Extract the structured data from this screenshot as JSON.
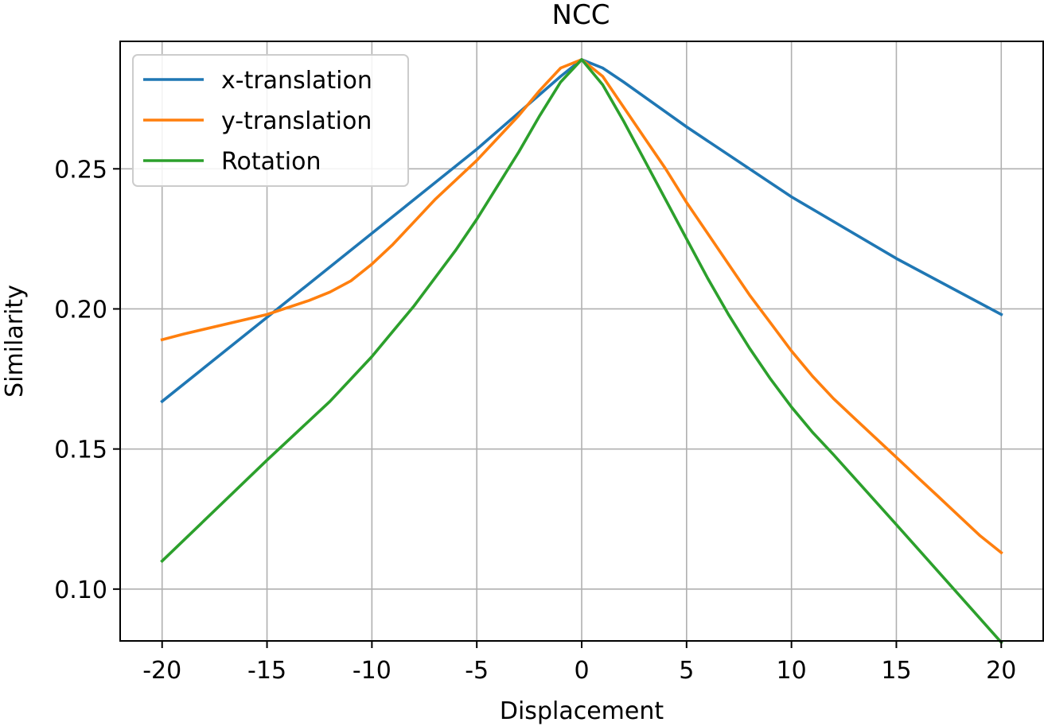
{
  "chart_data": {
    "type": "line",
    "title": "NCC",
    "xlabel": "Displacement",
    "ylabel": "Similarity",
    "xlim": [
      -22,
      22
    ],
    "ylim": [
      0.0815,
      0.2955
    ],
    "xticks": [
      -20,
      -15,
      -10,
      -5,
      0,
      5,
      10,
      15,
      20
    ],
    "xtick_labels": [
      "-20",
      "-15",
      "-10",
      "-5",
      "0",
      "5",
      "10",
      "15",
      "20"
    ],
    "yticks": [
      0.1,
      0.15,
      0.2,
      0.25
    ],
    "ytick_labels": [
      "0.10",
      "0.15",
      "0.20",
      "0.25"
    ],
    "grid": true,
    "legend_position": "top-left",
    "series": [
      {
        "name": "x-translation",
        "color": "#1f77b4",
        "x": [
          -20,
          -15,
          -10,
          -5,
          -1,
          0,
          1,
          2,
          5,
          10,
          15,
          20
        ],
        "y": [
          0.167,
          0.197,
          0.227,
          0.257,
          0.283,
          0.289,
          0.286,
          0.281,
          0.265,
          0.24,
          0.218,
          0.198
        ]
      },
      {
        "name": "y-translation",
        "color": "#ff7f0e",
        "x": [
          -20,
          -19,
          -15,
          -13,
          -12,
          -11,
          -10,
          -9,
          -8,
          -7,
          -6,
          -5,
          -4,
          -3,
          -2,
          -1,
          0,
          1,
          2,
          3,
          4,
          5,
          6,
          7,
          8,
          9,
          10,
          11,
          12,
          13,
          14,
          15,
          16,
          17,
          18,
          19,
          20
        ],
        "y": [
          0.189,
          0.191,
          0.198,
          0.203,
          0.206,
          0.21,
          0.216,
          0.223,
          0.231,
          0.239,
          0.246,
          0.253,
          0.261,
          0.269,
          0.278,
          0.286,
          0.289,
          0.283,
          0.272,
          0.261,
          0.25,
          0.238,
          0.227,
          0.216,
          0.205,
          0.195,
          0.185,
          0.176,
          0.168,
          0.161,
          0.154,
          0.147,
          0.14,
          0.133,
          0.126,
          0.119,
          0.113
        ]
      },
      {
        "name": "Rotation",
        "color": "#2ca02c",
        "x": [
          -20,
          -15,
          -12,
          -11,
          -10,
          -9,
          -8,
          -7,
          -6,
          -5,
          -4,
          -3,
          -2,
          -1,
          0,
          1,
          2,
          3,
          4,
          5,
          6,
          7,
          8,
          9,
          10,
          11,
          12,
          15,
          20
        ],
        "y": [
          0.11,
          0.146,
          0.167,
          0.175,
          0.183,
          0.192,
          0.201,
          0.211,
          0.221,
          0.232,
          0.244,
          0.256,
          0.269,
          0.281,
          0.289,
          0.28,
          0.267,
          0.253,
          0.239,
          0.225,
          0.211,
          0.198,
          0.186,
          0.175,
          0.165,
          0.156,
          0.148,
          0.123,
          0.081
        ]
      }
    ]
  }
}
